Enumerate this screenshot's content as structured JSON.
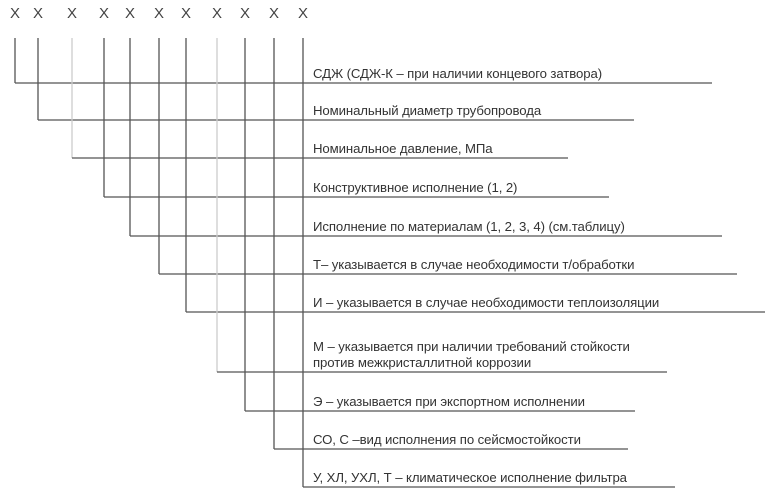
{
  "positions": [
    "X",
    "X",
    "X",
    "X",
    "X",
    "X",
    "X",
    "X",
    "X",
    "X",
    "X"
  ],
  "items": [
    "СДЖ (СДЖ-К – при наличии концевого затвора)",
    "Номинальный диаметр трубопровода",
    "Номинальное давление, МПа",
    "Конструктивное исполнение (1, 2)",
    "Исполнение по материалам (1, 2, 3, 4) (см.таблицу)",
    "Т– указывается в случае необходимости т/обработки",
    "И – указывается в случае необходимости теплоизоляции",
    "М – указывается при наличии требований стойкости\nпротив межкристаллитной коррозии",
    "Э – указывается при экспортном исполнении",
    "СО, С –вид исполнения по сейсмостойкости",
    "У, ХЛ, УХЛ, Т – климатическое исполнение фильтра"
  ],
  "colors": {
    "line": "#555555",
    "faint_line": "#cccccc",
    "text": "#333333"
  }
}
